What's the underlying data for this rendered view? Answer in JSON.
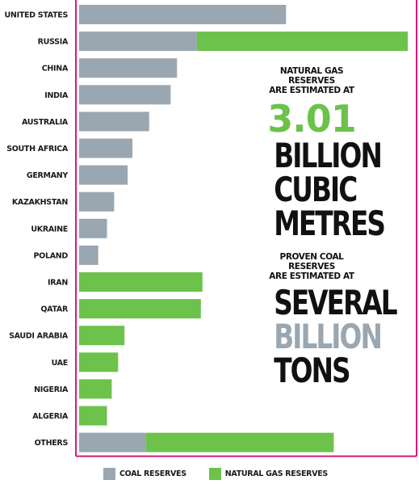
{
  "chart_data": {
    "type": "bar",
    "orientation": "horizontal",
    "stacked": true,
    "categories": [
      "UNITED STATES",
      "RUSSIA",
      "CHINA",
      "INDIA",
      "AUSTRALIA",
      "SOUTH AFRICA",
      "GERMANY",
      "KAZAKHSTAN",
      "UKRAINE",
      "POLAND",
      "IRAN",
      "QATAR",
      "SAUDI ARABIA",
      "UAE",
      "NIGERIA",
      "ALGERIA",
      "OTHERS"
    ],
    "series": [
      {
        "name": "COAL RESERVES",
        "color": "#9aa6b0",
        "values": [
          260,
          148,
          123,
          115,
          88,
          67,
          61,
          44,
          35,
          24,
          0,
          0,
          0,
          0,
          0,
          0,
          84
        ]
      },
      {
        "name": "NATURAL GAS RESERVES",
        "color": "#6cc24a",
        "values": [
          0,
          265,
          0,
          0,
          0,
          0,
          0,
          0,
          0,
          0,
          155,
          153,
          57,
          49,
          41,
          35,
          236
        ]
      }
    ],
    "xlim": [
      0,
      420
    ],
    "grid": false,
    "legend": "bottom",
    "axis_color": "#d6197a"
  },
  "info": {
    "gas_line1": "NATURAL GAS RESERVES",
    "gas_line2": "ARE ESTIMATED AT",
    "gas_value": "3.01",
    "gas_word1": "BILLION",
    "gas_word2": "CUBIC",
    "gas_word3": "METRES",
    "coal_line1": "PROVEN COAL RESERVES",
    "coal_line2": "ARE ESTIMATED AT",
    "coal_word1": "SEVERAL",
    "coal_word2": "BILLION",
    "coal_word3": "TONS"
  },
  "legend": {
    "coal_label": "COAL RESERVES",
    "gas_label": "NATURAL GAS RESERVES"
  }
}
